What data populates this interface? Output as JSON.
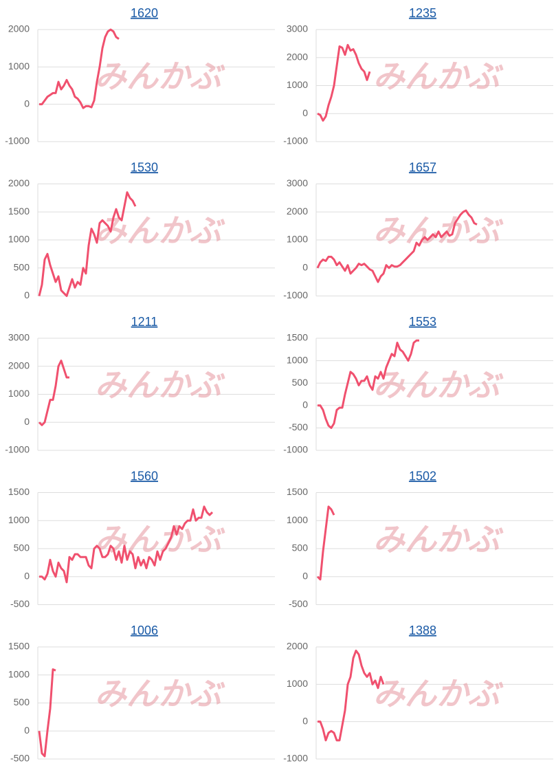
{
  "watermark": "みんかぶ",
  "chart_data": [
    {
      "type": "line",
      "title": "1620",
      "color": "#f0506e",
      "ylim": [
        -1000,
        2000
      ],
      "yticks": [
        -1000,
        0,
        1000,
        2000
      ],
      "values": [
        0,
        0,
        100,
        200,
        250,
        300,
        300,
        600,
        400,
        500,
        650,
        500,
        400,
        200,
        150,
        50,
        -100,
        -50,
        -50,
        -80,
        100,
        600,
        1000,
        1500,
        1800,
        1950,
        2000,
        1950,
        1800,
        1750
      ]
    },
    {
      "type": "line",
      "title": "1235",
      "color": "#f0506e",
      "ylim": [
        -1000,
        3000
      ],
      "yticks": [
        -1000,
        0,
        1000,
        2000,
        3000
      ],
      "values": [
        0,
        -50,
        -250,
        -100,
        300,
        600,
        1000,
        1700,
        2400,
        2350,
        2100,
        2450,
        2250,
        2300,
        2100,
        1800,
        1600,
        1500,
        1200,
        1500
      ]
    },
    {
      "type": "line",
      "title": "1530",
      "color": "#f0506e",
      "ylim": [
        0,
        2000
      ],
      "yticks": [
        0,
        500,
        1000,
        1500,
        2000
      ],
      "values": [
        0,
        200,
        650,
        750,
        550,
        400,
        250,
        350,
        100,
        50,
        0,
        150,
        300,
        150,
        250,
        200,
        500,
        400,
        900,
        1200,
        1100,
        950,
        1300,
        1350,
        1300,
        1250,
        1150,
        1400,
        1550,
        1400,
        1350,
        1600,
        1850,
        1750,
        1700,
        1600
      ]
    },
    {
      "type": "line",
      "title": "1657",
      "color": "#f0506e",
      "ylim": [
        -1000,
        3000
      ],
      "yticks": [
        -1000,
        0,
        1000,
        2000,
        3000
      ],
      "values": [
        0,
        200,
        300,
        250,
        400,
        400,
        300,
        100,
        200,
        50,
        -100,
        100,
        -200,
        -100,
        0,
        150,
        100,
        150,
        50,
        -50,
        -100,
        -300,
        -500,
        -300,
        -200,
        100,
        0,
        100,
        50,
        50,
        100,
        200,
        300,
        400,
        500,
        600,
        900,
        800,
        1000,
        1100,
        1000,
        1100,
        1200,
        1100,
        1300,
        1100,
        1200,
        1300,
        1150,
        1200,
        1600,
        1750,
        1900,
        2000,
        2050,
        1900,
        1800,
        1600,
        1550
      ]
    },
    {
      "type": "line",
      "title": "1211",
      "color": "#f0506e",
      "ylim": [
        -1000,
        3000
      ],
      "yticks": [
        -1000,
        0,
        1000,
        2000,
        3000
      ],
      "values": [
        0,
        -100,
        0,
        400,
        800,
        800,
        1300,
        2000,
        2200,
        1900,
        1600,
        1600
      ]
    },
    {
      "type": "line",
      "title": "1553",
      "color": "#f0506e",
      "ylim": [
        -1000,
        1500
      ],
      "yticks": [
        -1000,
        -500,
        0,
        500,
        1000,
        1500
      ],
      "values": [
        0,
        0,
        -100,
        -300,
        -450,
        -500,
        -400,
        -100,
        -50,
        -50,
        250,
        500,
        750,
        700,
        600,
        450,
        550,
        550,
        650,
        450,
        350,
        650,
        600,
        750,
        600,
        850,
        1000,
        1150,
        1100,
        1400,
        1250,
        1200,
        1100,
        1000,
        1150,
        1400,
        1450,
        1450
      ]
    },
    {
      "type": "line",
      "title": "1560",
      "color": "#f0506e",
      "ylim": [
        -500,
        1500
      ],
      "yticks": [
        -500,
        0,
        500,
        1000,
        1500
      ],
      "values": [
        0,
        0,
        -50,
        50,
        300,
        100,
        0,
        250,
        150,
        100,
        -100,
        350,
        300,
        400,
        400,
        350,
        350,
        350,
        200,
        150,
        500,
        550,
        500,
        350,
        350,
        400,
        550,
        500,
        300,
        450,
        250,
        550,
        300,
        450,
        400,
        150,
        350,
        200,
        300,
        150,
        350,
        300,
        200,
        450,
        300,
        450,
        500,
        600,
        700,
        900,
        750,
        900,
        850,
        950,
        1000,
        1000,
        1200,
        1000,
        1050,
        1050,
        1250,
        1150,
        1100,
        1150
      ]
    },
    {
      "type": "line",
      "title": "1502",
      "color": "#f0506e",
      "ylim": [
        -500,
        1500
      ],
      "yticks": [
        -500,
        0,
        500,
        1000,
        1500
      ],
      "values": [
        0,
        -50,
        450,
        850,
        1250,
        1200,
        1100
      ]
    },
    {
      "type": "line",
      "title": "1006",
      "color": "#f0506e",
      "ylim": [
        -500,
        1500
      ],
      "yticks": [
        -500,
        0,
        500,
        1000,
        1500
      ],
      "values": [
        0,
        -400,
        -450,
        0,
        400,
        1100,
        1080
      ]
    },
    {
      "type": "line",
      "title": "1388",
      "color": "#f0506e",
      "ylim": [
        -1000,
        2000
      ],
      "yticks": [
        -1000,
        0,
        1000,
        2000
      ],
      "values": [
        0,
        0,
        -200,
        -500,
        -300,
        -250,
        -300,
        -500,
        -500,
        -100,
        300,
        1000,
        1200,
        1700,
        1900,
        1800,
        1500,
        1300,
        1200,
        1300,
        1000,
        1100,
        900,
        1200,
        1000
      ]
    }
  ]
}
